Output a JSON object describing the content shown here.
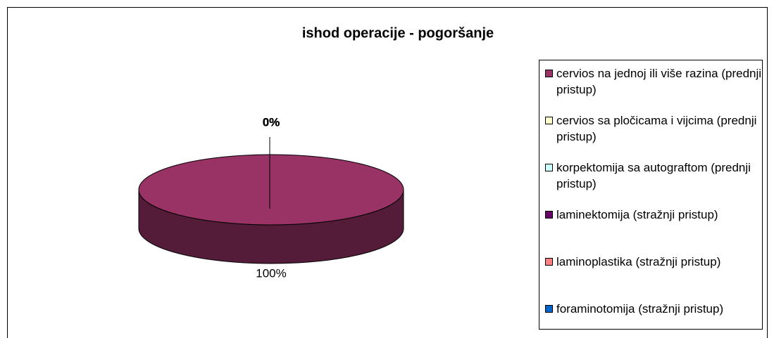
{
  "chart_data": {
    "type": "pie",
    "title": "ishod operacije - pogoršanje",
    "categories": [
      "cervios na jednoj ili više razina (prednji pristup)",
      "cervios sa pločicama i vijcima (prednji pristup)",
      "korpektomija sa autograftom (prednji pristup)",
      "laminektomija (stražnji pristup)",
      "laminoplastika (stražnji pristup)",
      "foraminotomija (stražnji pristup)"
    ],
    "values": [
      100,
      0,
      0,
      0,
      0,
      0
    ],
    "value_labels": [
      "100%",
      "0%",
      "0%",
      "0%",
      "0%",
      "0%"
    ],
    "colors": [
      "#993366",
      "#ffffcc",
      "#ccffff",
      "#660066",
      "#ff8080",
      "#0066cc"
    ],
    "legend": "right"
  }
}
